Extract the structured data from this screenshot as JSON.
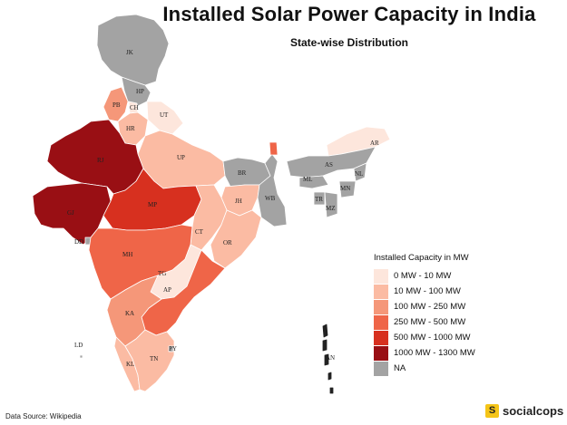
{
  "title": "Installed Solar Power Capacity in India",
  "subtitle": "State-wise Distribution",
  "legend": {
    "title": "Installed Capacity in MW",
    "items": [
      {
        "label": "0 MW - 10 MW",
        "color": "#fde6dc"
      },
      {
        "label": "10 MW - 100 MW",
        "color": "#fbbba3"
      },
      {
        "label": "100 MW - 250 MW",
        "color": "#f59779"
      },
      {
        "label": "250 MW - 500 MW",
        "color": "#ef6548"
      },
      {
        "label": "500 MW - 1000 MW",
        "color": "#d7301f"
      },
      {
        "label": "1000 MW - 1300 MW",
        "color": "#990f14"
      },
      {
        "label": "NA",
        "color": "#a3a3a3"
      }
    ]
  },
  "states": {
    "JK": {
      "label": "JK",
      "category": "NA"
    },
    "HP": {
      "label": "HP",
      "category": "NA"
    },
    "PB": {
      "label": "PB",
      "category": "100 MW - 250 MW"
    },
    "CH": {
      "label": "CH",
      "category": "0 MW - 10 MW"
    },
    "UT": {
      "label": "UT",
      "category": "0 MW - 10 MW"
    },
    "HR": {
      "label": "HR",
      "category": "10 MW - 100 MW"
    },
    "RJ": {
      "label": "RJ",
      "category": "1000 MW - 1300 MW"
    },
    "GJ": {
      "label": "GJ",
      "category": "1000 MW - 1300 MW"
    },
    "UP": {
      "label": "UP",
      "category": "10 MW - 100 MW"
    },
    "MP": {
      "label": "MP",
      "category": "500 MW - 1000 MW"
    },
    "BR": {
      "label": "BR",
      "category": "NA"
    },
    "WB": {
      "label": "WB",
      "category": "NA"
    },
    "JH": {
      "label": "JH",
      "category": "10 MW - 100 MW"
    },
    "CT": {
      "label": "CT",
      "category": "10 MW - 100 MW"
    },
    "OR": {
      "label": "OR",
      "category": "10 MW - 100 MW"
    },
    "MH": {
      "label": "MH",
      "category": "250 MW - 500 MW"
    },
    "TG": {
      "label": "TG",
      "category": "0 MW - 10 MW"
    },
    "AP": {
      "label": "AP",
      "category": "250 MW - 500 MW"
    },
    "KA": {
      "label": "KA",
      "category": "100 MW - 250 MW"
    },
    "TN": {
      "label": "TN",
      "category": "10 MW - 100 MW"
    },
    "KL": {
      "label": "KL",
      "category": "10 MW - 100 MW"
    },
    "DD": {
      "label": "DD",
      "category": "NA"
    },
    "AR": {
      "label": "AR",
      "category": "0 MW - 10 MW"
    },
    "AS": {
      "label": "AS",
      "category": "NA"
    },
    "ML": {
      "label": "ML",
      "category": "NA"
    },
    "NL": {
      "label": "NL",
      "category": "NA"
    },
    "MN": {
      "label": "MN",
      "category": "NA"
    },
    "MZ": {
      "label": "MZ",
      "category": "NA"
    },
    "TR": {
      "label": "TR",
      "category": "NA"
    },
    "SK": {
      "label": "SK",
      "category": "250 MW - 500 MW"
    },
    "PY": {
      "label": "PY",
      "category": "NA"
    },
    "LD": {
      "label": "LD",
      "category": "NA"
    },
    "AN": {
      "label": "AN",
      "category": "NA"
    }
  },
  "source": "Data Source: Wikipedia",
  "brand": {
    "icon": "S",
    "name": "socialcops"
  }
}
